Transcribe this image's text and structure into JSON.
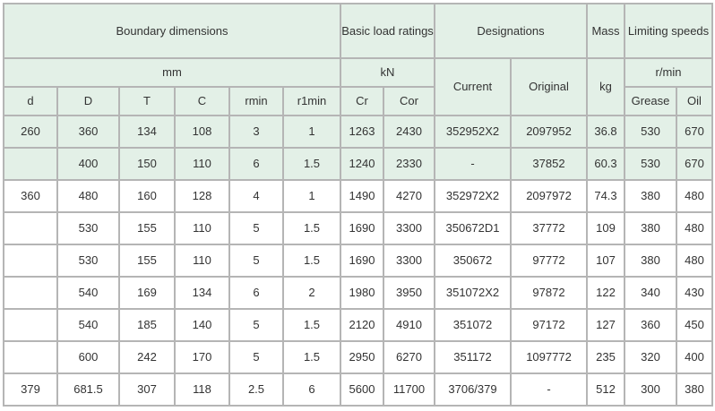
{
  "header": {
    "boundary_dimensions": "Boundary dimensions",
    "basic_load_ratings": "Basic load ratings",
    "designations": "Designations",
    "mass": "Mass",
    "limiting_speeds": "Limiting speeds",
    "mm": "mm",
    "kN": "kN",
    "current": "Current",
    "original": "Original",
    "kg": "kg",
    "rpm": "r/min",
    "cols": [
      "d",
      "D",
      "T",
      "C",
      "rmin",
      "r1min",
      "Cr",
      "Cor",
      "Grease",
      "Oil"
    ]
  },
  "colors": {
    "header_bg": "#e3f0e7",
    "border": "#b5b5b5"
  },
  "rows": [
    [
      "260",
      "360",
      "134",
      "108",
      "3",
      "1",
      "1263",
      "2430",
      "352952X2",
      "2097952",
      "36.8",
      "530",
      "670"
    ],
    [
      "",
      "400",
      "150",
      "110",
      "6",
      "1.5",
      "1240",
      "2330",
      "-",
      "37852",
      "60.3",
      "530",
      "670"
    ],
    [
      "360",
      "480",
      "160",
      "128",
      "4",
      "1",
      "1490",
      "4270",
      "352972X2",
      "2097972",
      "74.3",
      "380",
      "480"
    ],
    [
      "",
      "530",
      "155",
      "110",
      "5",
      "1.5",
      "1690",
      "3300",
      "350672D1",
      "37772",
      "109",
      "380",
      "480"
    ],
    [
      "",
      "530",
      "155",
      "110",
      "5",
      "1.5",
      "1690",
      "3300",
      "350672",
      "97772",
      "107",
      "380",
      "480"
    ],
    [
      "",
      "540",
      "169",
      "134",
      "6",
      "2",
      "1980",
      "3950",
      "351072X2",
      "97872",
      "122",
      "340",
      "430"
    ],
    [
      "",
      "540",
      "185",
      "140",
      "5",
      "1.5",
      "2120",
      "4910",
      "351072",
      "97172",
      "127",
      "360",
      "450"
    ],
    [
      "",
      "600",
      "242",
      "170",
      "5",
      "1.5",
      "2950",
      "6270",
      "351172",
      "1097772",
      "235",
      "320",
      "400"
    ],
    [
      "379",
      "681.5",
      "307",
      "118",
      "2.5",
      "6",
      "5600",
      "11700",
      "3706/379",
      "-",
      "512",
      "300",
      "380"
    ]
  ]
}
